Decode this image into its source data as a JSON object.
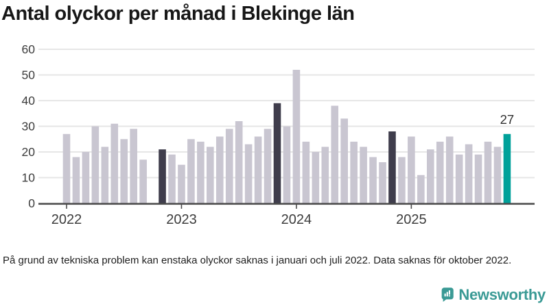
{
  "footnote": {
    "text": "På grund av tekniska problem kan enstaka olyckor saknas i januari och juli 2022. Data saknas för oktober 2022."
  },
  "logo": {
    "brand_name": "Newsworthy",
    "icon": "bar-chart-speech-bubble-icon",
    "color": "#3a9a95"
  },
  "chart_data": {
    "type": "bar",
    "title": "Antal olyckor per månad i Blekinge län",
    "xlabel": "",
    "ylabel": "",
    "ylim": [
      0,
      60
    ],
    "yticks": [
      0,
      10,
      20,
      30,
      40,
      50,
      60
    ],
    "grid": "horizontal",
    "legend": "none",
    "months": [
      "2022-01",
      "2022-02",
      "2022-03",
      "2022-04",
      "2022-05",
      "2022-06",
      "2022-07",
      "2022-08",
      "2022-09",
      "2022-10",
      "2022-11",
      "2022-12",
      "2023-01",
      "2023-02",
      "2023-03",
      "2023-04",
      "2023-05",
      "2023-06",
      "2023-07",
      "2023-08",
      "2023-09",
      "2023-10",
      "2023-11",
      "2023-12",
      "2024-01",
      "2024-02",
      "2024-03",
      "2024-04",
      "2024-05",
      "2024-06",
      "2024-07",
      "2024-08",
      "2024-09",
      "2024-10",
      "2024-11",
      "2024-12",
      "2025-01",
      "2025-02",
      "2025-03",
      "2025-04",
      "2025-05",
      "2025-06",
      "2025-07",
      "2025-08",
      "2025-09",
      "2025-10",
      "2025-11"
    ],
    "values": [
      27,
      18,
      20,
      30,
      22,
      31,
      25,
      29,
      17,
      null,
      21,
      19,
      15,
      25,
      24,
      22,
      26,
      29,
      32,
      23,
      26,
      29,
      39,
      30,
      52,
      24,
      20,
      22,
      38,
      33,
      24,
      22,
      18,
      16,
      28,
      18,
      26,
      11,
      21,
      24,
      26,
      19,
      23,
      19,
      24,
      22,
      27
    ],
    "missing_months": [
      "2022-10"
    ],
    "dark_months": [
      "2022-11",
      "2023-11",
      "2024-11"
    ],
    "highlight_month": "2025-11",
    "value_label": {
      "month": "2025-11",
      "text": "27"
    },
    "year_labels": [
      "2022",
      "2023",
      "2024",
      "2025"
    ],
    "colors": {
      "bar": "#c9c6d1",
      "dark": "#3f3d4c",
      "highlight": "#00a19a",
      "grid": "#e6e6e6",
      "axis": "#4a4a4a",
      "tick_text": "#3c3c3c",
      "value_label_text": "#2e2e2e"
    }
  }
}
